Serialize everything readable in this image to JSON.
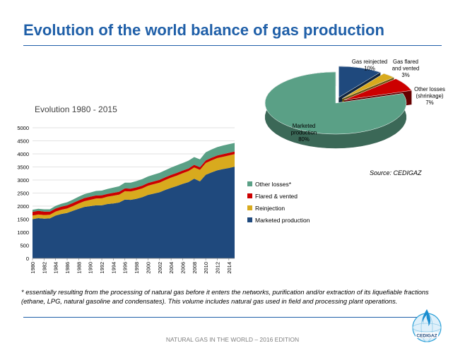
{
  "page": {
    "title": "Evolution of the world balance of gas production",
    "subtitle": "Evolution 1980 - 2015",
    "source": "Source: CEDIGAZ",
    "footnote": "* essentially resulting from the processing of natural gas before it enters the networks, purification and/or extraction of its liquefiable fractions (ethane, LPG, natural gasoline and condensates). This volume includes natural gas used in field and processing plant operations.",
    "footer": "NATURAL GAS IN THE WORLD – 2016 EDITION",
    "logo_text": "CEDIGAZ"
  },
  "colors": {
    "title_blue": "#1f5fa8",
    "marketed": "#1f497d",
    "reinjection": "#d8aa1e",
    "flared": "#cc0000",
    "other": "#5aa086"
  },
  "chart_data": [
    {
      "type": "area",
      "stacked": true,
      "title": "Evolution 1980 - 2015",
      "x": [
        1980,
        1981,
        1982,
        1983,
        1984,
        1985,
        1986,
        1987,
        1988,
        1989,
        1990,
        1991,
        1992,
        1993,
        1994,
        1995,
        1996,
        1997,
        1998,
        1999,
        2000,
        2001,
        2002,
        2003,
        2004,
        2005,
        2006,
        2007,
        2008,
        2009,
        2010,
        2011,
        2012,
        2013,
        2014,
        2015
      ],
      "x_tick_labels": [
        "1980",
        "1982",
        "1984",
        "1986",
        "1988",
        "1990",
        "1992",
        "1994",
        "1996",
        "1998",
        "2000",
        "2002",
        "2004",
        "2006",
        "2008",
        "2010",
        "2012",
        "2014"
      ],
      "ylim": [
        0,
        5000
      ],
      "y_ticks": [
        0,
        500,
        1000,
        1500,
        2000,
        2500,
        3000,
        3500,
        4000,
        4500,
        5000
      ],
      "legend_position": "right",
      "series": [
        {
          "name": "Marketed production",
          "color": "#1f497d",
          "values": [
            1500,
            1540,
            1520,
            1530,
            1640,
            1700,
            1740,
            1820,
            1900,
            1970,
            2000,
            2030,
            2030,
            2080,
            2100,
            2140,
            2250,
            2240,
            2280,
            2340,
            2430,
            2480,
            2530,
            2620,
            2700,
            2770,
            2850,
            2920,
            3050,
            2950,
            3200,
            3290,
            3370,
            3420,
            3460,
            3510
          ]
        },
        {
          "name": "Reinjection",
          "color": "#d8aa1e",
          "values": [
            140,
            140,
            140,
            140,
            150,
            160,
            170,
            180,
            200,
            220,
            240,
            260,
            270,
            280,
            300,
            300,
            320,
            320,
            330,
            340,
            350,
            360,
            370,
            380,
            390,
            400,
            410,
            420,
            430,
            440,
            450,
            460,
            470,
            470,
            480,
            480
          ]
        },
        {
          "name": "Flared & vented",
          "color": "#cc0000",
          "values": [
            140,
            140,
            130,
            120,
            120,
            120,
            120,
            120,
            120,
            120,
            120,
            120,
            115,
            110,
            110,
            110,
            110,
            110,
            110,
            105,
            105,
            105,
            105,
            105,
            105,
            105,
            100,
            100,
            100,
            100,
            100,
            100,
            100,
            100,
            100,
            100
          ]
        },
        {
          "name": "Other losses*",
          "color": "#5aa086",
          "values": [
            80,
            80,
            90,
            90,
            100,
            110,
            120,
            130,
            140,
            150,
            160,
            170,
            180,
            190,
            200,
            210,
            220,
            230,
            240,
            250,
            250,
            260,
            270,
            270,
            280,
            290,
            290,
            300,
            300,
            300,
            310,
            320,
            320,
            330,
            330,
            330
          ]
        }
      ]
    },
    {
      "type": "pie",
      "three_d": true,
      "slices": [
        {
          "label": "Marketed production",
          "value": 80,
          "value_label": "80%",
          "color": "#5aa086"
        },
        {
          "label": "Gas reinjected",
          "value": 10,
          "value_label": "10%",
          "color": "#1f497d"
        },
        {
          "label": "Gas flared and vented",
          "value": 3,
          "value_label": "3%",
          "color": "#d8aa1e"
        },
        {
          "label": "Other losses (shrinkage)",
          "value": 7,
          "value_label": "7%",
          "color": "#cc0000"
        }
      ]
    }
  ]
}
